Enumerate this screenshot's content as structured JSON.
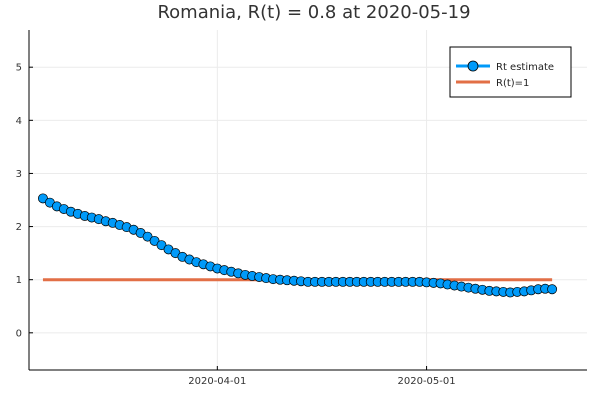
{
  "chart_data": {
    "type": "line",
    "title": "Romania, R(t) = 0.8 at 2020-05-19",
    "xlabel": "",
    "ylabel": "",
    "ylim": [
      -0.7,
      5.7
    ],
    "y_ticks": [
      0,
      1,
      2,
      3,
      4,
      5
    ],
    "x_ticks": [
      {
        "value": "2020-04-01",
        "label": "2020-04-01"
      },
      {
        "value": "2020-05-01",
        "label": "2020-05-01"
      }
    ],
    "xlim": [
      "2020-03-05",
      "2020-05-24"
    ],
    "grid": true,
    "legend_position": "top-right",
    "colors": {
      "rt": "#009af9",
      "ref": "#e26f46",
      "marker_edge": "#000000"
    },
    "series": [
      {
        "name": "Rt estimate",
        "style": "line-markers",
        "x": [
          "2020-03-07",
          "2020-03-08",
          "2020-03-09",
          "2020-03-10",
          "2020-03-11",
          "2020-03-12",
          "2020-03-13",
          "2020-03-14",
          "2020-03-15",
          "2020-03-16",
          "2020-03-17",
          "2020-03-18",
          "2020-03-19",
          "2020-03-20",
          "2020-03-21",
          "2020-03-22",
          "2020-03-23",
          "2020-03-24",
          "2020-03-25",
          "2020-03-26",
          "2020-03-27",
          "2020-03-28",
          "2020-03-29",
          "2020-03-30",
          "2020-03-31",
          "2020-04-01",
          "2020-04-02",
          "2020-04-03",
          "2020-04-04",
          "2020-04-05",
          "2020-04-06",
          "2020-04-07",
          "2020-04-08",
          "2020-04-09",
          "2020-04-10",
          "2020-04-11",
          "2020-04-12",
          "2020-04-13",
          "2020-04-14",
          "2020-04-15",
          "2020-04-16",
          "2020-04-17",
          "2020-04-18",
          "2020-04-19",
          "2020-04-20",
          "2020-04-21",
          "2020-04-22",
          "2020-04-23",
          "2020-04-24",
          "2020-04-25",
          "2020-04-26",
          "2020-04-27",
          "2020-04-28",
          "2020-04-29",
          "2020-04-30",
          "2020-05-01",
          "2020-05-02",
          "2020-05-03",
          "2020-05-04",
          "2020-05-05",
          "2020-05-06",
          "2020-05-07",
          "2020-05-08",
          "2020-05-09",
          "2020-05-10",
          "2020-05-11",
          "2020-05-12",
          "2020-05-13",
          "2020-05-14",
          "2020-05-15",
          "2020-05-16",
          "2020-05-17",
          "2020-05-18",
          "2020-05-19"
        ],
        "values": [
          2.53,
          2.45,
          2.38,
          2.33,
          2.28,
          2.24,
          2.2,
          2.17,
          2.14,
          2.1,
          2.07,
          2.03,
          1.99,
          1.94,
          1.88,
          1.81,
          1.73,
          1.65,
          1.57,
          1.5,
          1.43,
          1.38,
          1.33,
          1.29,
          1.25,
          1.21,
          1.18,
          1.15,
          1.12,
          1.09,
          1.07,
          1.05,
          1.03,
          1.01,
          1.0,
          0.99,
          0.98,
          0.97,
          0.96,
          0.96,
          0.96,
          0.96,
          0.96,
          0.96,
          0.96,
          0.96,
          0.96,
          0.96,
          0.96,
          0.96,
          0.96,
          0.96,
          0.96,
          0.96,
          0.96,
          0.95,
          0.94,
          0.93,
          0.91,
          0.89,
          0.87,
          0.85,
          0.83,
          0.81,
          0.79,
          0.78,
          0.77,
          0.76,
          0.77,
          0.78,
          0.8,
          0.82,
          0.83,
          0.82
        ]
      },
      {
        "name": "R(t)=1",
        "style": "line",
        "x": [
          "2020-03-07",
          "2020-05-19"
        ],
        "values": [
          1,
          1
        ]
      }
    ]
  }
}
